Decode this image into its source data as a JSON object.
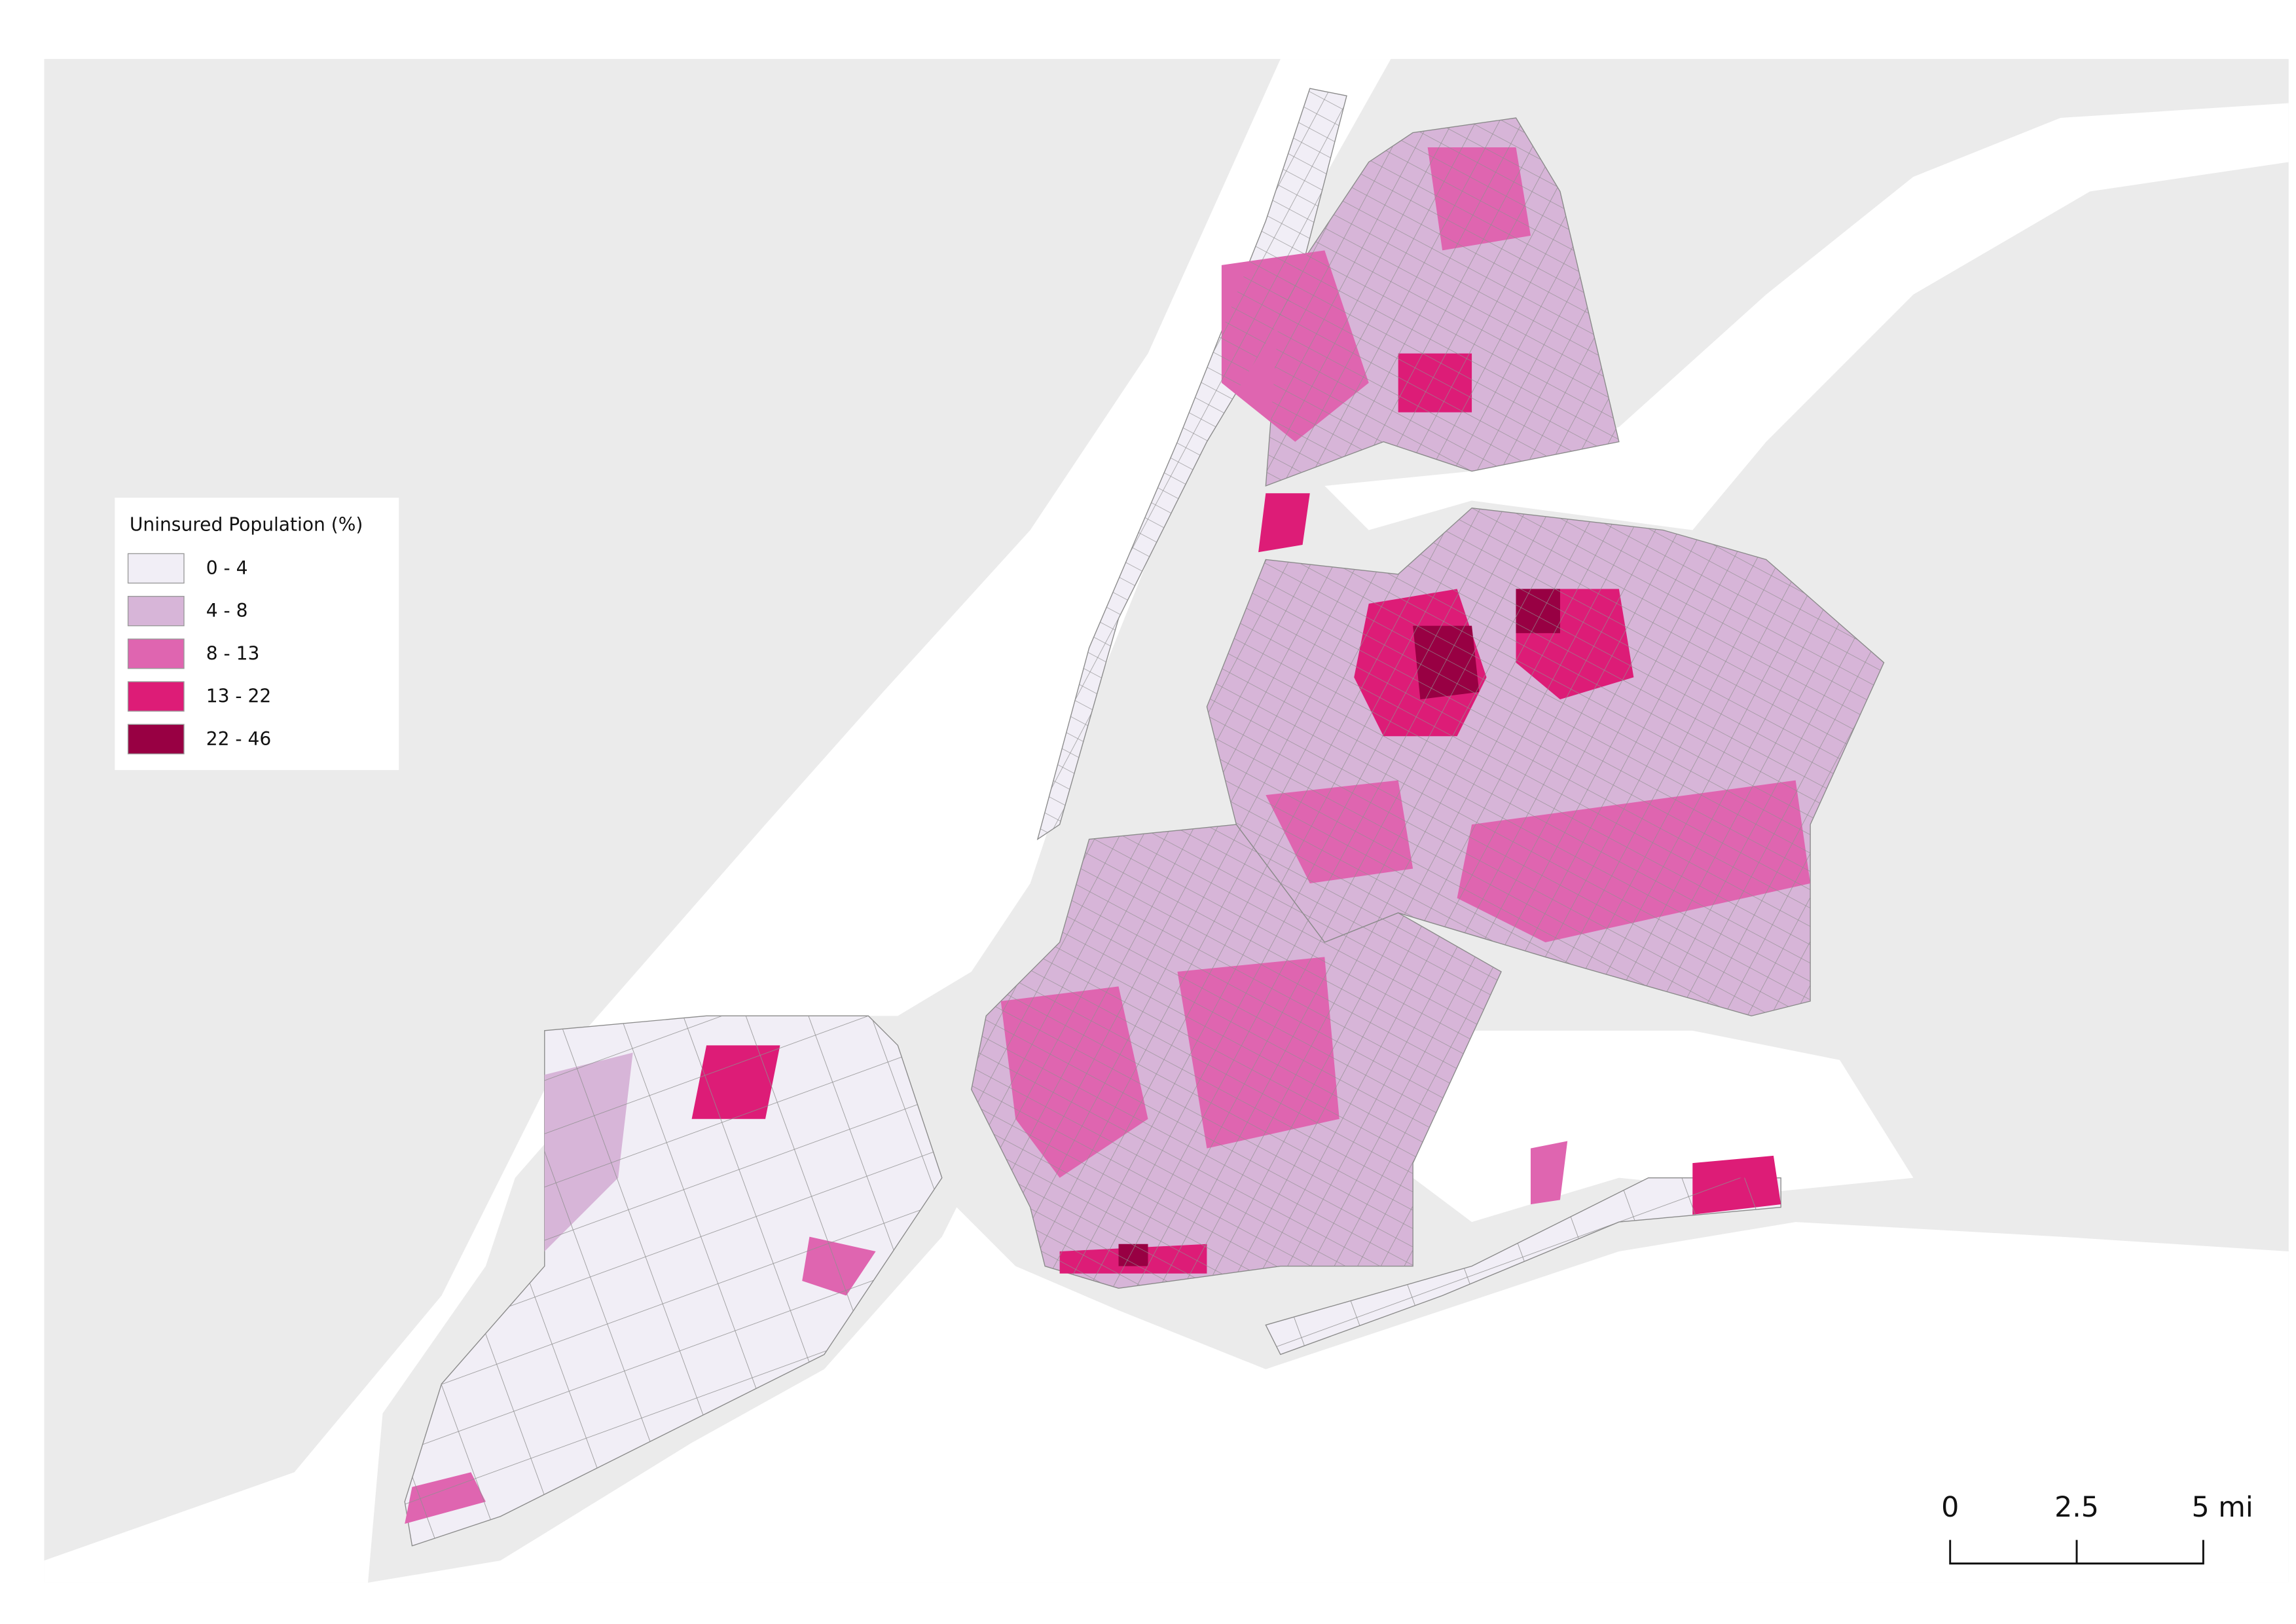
{
  "legend": {
    "title": "Uninsured Population (%)",
    "items": [
      {
        "label": "0 - 4",
        "color": "#f1eef6"
      },
      {
        "label": "4 - 8",
        "color": "#d7b5d8"
      },
      {
        "label": "8 - 13",
        "color": "#df65b0"
      },
      {
        "label": "13 - 22",
        "color": "#dd1c77"
      },
      {
        "label": "22 - 46",
        "color": "#980043"
      }
    ]
  },
  "scale_bar": {
    "labels": [
      "0",
      "2.5",
      "5 mi"
    ]
  }
}
